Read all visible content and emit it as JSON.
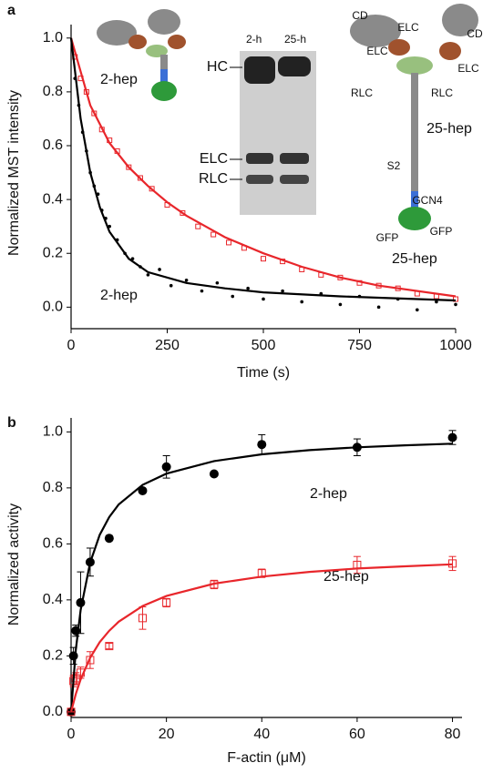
{
  "chart_data": [
    {
      "type": "scatter",
      "panel_label": "a",
      "xlabel": "Time (s)",
      "ylabel": "Normalized MST intensity",
      "xlim": [
        0,
        1000
      ],
      "ylim": [
        -0.08,
        1.05
      ],
      "xticks": [
        0,
        250,
        500,
        750,
        1000
      ],
      "yticks": [
        {
          "value": 0,
          "label": "0.0"
        },
        0.2,
        0.4,
        0.6,
        0.8,
        {
          "value": 1,
          "label": "1.0"
        }
      ],
      "series": [
        {
          "name": "2-hep",
          "color": "#000000",
          "marker": "dot",
          "x": [
            10,
            20,
            30,
            40,
            50,
            60,
            70,
            80,
            90,
            100,
            120,
            140,
            160,
            180,
            200,
            230,
            260,
            300,
            340,
            380,
            420,
            460,
            500,
            550,
            600,
            650,
            700,
            750,
            800,
            850,
            900,
            950,
            1000
          ],
          "values": [
            0.85,
            0.75,
            0.65,
            0.58,
            0.5,
            0.45,
            0.42,
            0.36,
            0.33,
            0.3,
            0.25,
            0.2,
            0.18,
            0.15,
            0.12,
            0.14,
            0.08,
            0.1,
            0.06,
            0.09,
            0.04,
            0.07,
            0.03,
            0.06,
            0.02,
            0.05,
            0.01,
            0.04,
            0,
            0.03,
            -0.01,
            0.02,
            0.01
          ]
        },
        {
          "name": "25-hep",
          "color": "#e8262b",
          "marker": "square",
          "x": [
            10,
            25,
            40,
            60,
            80,
            100,
            120,
            150,
            180,
            210,
            250,
            290,
            330,
            370,
            410,
            450,
            500,
            550,
            600,
            650,
            700,
            750,
            800,
            850,
            900,
            950,
            1000
          ],
          "values": [
            0.93,
            0.85,
            0.8,
            0.72,
            0.66,
            0.62,
            0.58,
            0.52,
            0.48,
            0.44,
            0.38,
            0.35,
            0.3,
            0.27,
            0.24,
            0.22,
            0.18,
            0.17,
            0.14,
            0.12,
            0.11,
            0.09,
            0.08,
            0.07,
            0.05,
            0.04,
            0.03
          ]
        }
      ],
      "fits": [
        {
          "color": "#e8262b",
          "x": [
            0,
            50,
            100,
            150,
            200,
            250,
            300,
            400,
            500,
            600,
            700,
            800,
            1000
          ],
          "values": [
            1.0,
            0.75,
            0.61,
            0.52,
            0.45,
            0.39,
            0.34,
            0.26,
            0.2,
            0.15,
            0.11,
            0.08,
            0.04
          ]
        },
        {
          "color": "#000000",
          "x": [
            0,
            25,
            50,
            75,
            100,
            150,
            200,
            300,
            400,
            500,
            700,
            1000
          ],
          "values": [
            1.0,
            0.7,
            0.5,
            0.37,
            0.28,
            0.18,
            0.13,
            0.09,
            0.07,
            0.055,
            0.04,
            0.025
          ]
        }
      ],
      "annotations": [
        "2-h",
        "25-h",
        "HC",
        "ELC",
        "RLC",
        "CD",
        "ELC",
        "CD",
        "ELC",
        "ELC",
        "RLC",
        "RLC",
        "25-hep",
        "S2",
        "GCN4",
        "GFP",
        "GFP",
        "2-hep"
      ]
    },
    {
      "type": "scatter",
      "panel_label": "b",
      "xlabel": "F-actin (μM)",
      "ylabel": "Normalized activity",
      "xlim": [
        0,
        82
      ],
      "ylim": [
        -0.02,
        1.05
      ],
      "xticks": [
        0,
        20,
        40,
        60,
        80
      ],
      "yticks": [
        {
          "value": 0,
          "label": "0.0"
        },
        0.2,
        0.4,
        0.6,
        0.8,
        {
          "value": 1,
          "label": "1.0"
        }
      ],
      "series": [
        {
          "name": "2-hep",
          "color": "#000000",
          "marker": "dot",
          "x": [
            0,
            0.5,
            1,
            2,
            4,
            8,
            15,
            20,
            30,
            40,
            60,
            80
          ],
          "values": [
            0,
            0.2,
            0.29,
            0.39,
            0.535,
            0.62,
            0.79,
            0.875,
            0.85,
            0.955,
            0.945,
            0.98
          ],
          "errors": [
            0,
            0.03,
            0.02,
            0.11,
            0.05,
            0,
            0,
            0.04,
            0,
            0.035,
            0.03,
            0.025
          ]
        },
        {
          "name": "25-hep",
          "color": "#e8262b",
          "marker": "square",
          "x": [
            0,
            0.5,
            1,
            2,
            4,
            8,
            15,
            20,
            30,
            40,
            60,
            80
          ],
          "values": [
            0,
            0.11,
            0.12,
            0.14,
            0.185,
            0.235,
            0.335,
            0.39,
            0.455,
            0.495,
            0.525,
            0.53
          ],
          "errors": [
            0,
            0.02,
            0.02,
            0.02,
            0.03,
            0.01,
            0.04,
            0.015,
            0.015,
            0.015,
            0.03,
            0.025
          ]
        }
      ],
      "fits": [
        {
          "color": "#000000",
          "x": [
            0,
            1,
            2,
            4,
            6,
            8,
            10,
            15,
            20,
            30,
            40,
            50,
            60,
            70,
            80
          ],
          "values": [
            0,
            0.222,
            0.364,
            0.533,
            0.632,
            0.696,
            0.741,
            0.811,
            0.851,
            0.896,
            0.92,
            0.935,
            0.945,
            0.952,
            0.958
          ]
        },
        {
          "color": "#e8262b",
          "x": [
            0,
            1,
            2,
            4,
            6,
            8,
            10,
            15,
            20,
            30,
            40,
            50,
            60,
            70,
            80
          ],
          "values": [
            0,
            0.064,
            0.116,
            0.193,
            0.249,
            0.29,
            0.322,
            0.378,
            0.414,
            0.458,
            0.483,
            0.5,
            0.512,
            0.52,
            0.527
          ]
        }
      ],
      "annotations": []
    }
  ]
}
